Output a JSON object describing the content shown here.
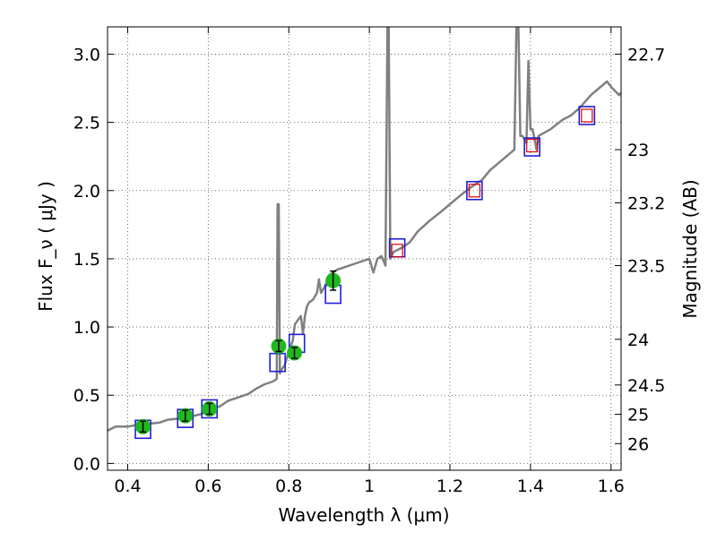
{
  "chart_data": {
    "type": "line",
    "title": "",
    "xlabel": "Wavelength  λ (μm)",
    "ylabel": "Flux  F_ν ( μJy )",
    "y2label": "Magnitude (AB)",
    "xlim": [
      0.35,
      1.625
    ],
    "ylim": [
      -0.05,
      3.2
    ],
    "grid": true,
    "legend": "none",
    "x_ticks": [
      0.4,
      0.6,
      0.8,
      1.0,
      1.2,
      1.4,
      1.6
    ],
    "x_tick_labels": [
      "0.4",
      "0.6",
      "0.8",
      "1",
      "1.2",
      "1.4",
      "1.6"
    ],
    "y_ticks": [
      0.0,
      0.5,
      1.0,
      1.5,
      2.0,
      2.5,
      3.0
    ],
    "y_tick_labels": [
      "0.0",
      "0.5",
      "1.0",
      "1.5",
      "2.0",
      "2.5",
      "3.0"
    ],
    "y2_ticks": [
      {
        "label": "22.7",
        "flux": 3.0
      },
      {
        "label": "23",
        "flux": 2.3
      },
      {
        "label": "23.2",
        "flux": 1.91
      },
      {
        "label": "23.5",
        "flux": 1.45
      },
      {
        "label": "24",
        "flux": 0.91
      },
      {
        "label": "24.5",
        "flux": 0.575
      },
      {
        "label": "25",
        "flux": 0.36
      },
      {
        "label": "26",
        "flux": 0.145
      }
    ],
    "model_spectrum": {
      "color": "#808080",
      "x": [
        0.35,
        0.37,
        0.4,
        0.42,
        0.45,
        0.48,
        0.5,
        0.53,
        0.55,
        0.58,
        0.6,
        0.63,
        0.65,
        0.68,
        0.7,
        0.72,
        0.74,
        0.76,
        0.77,
        0.772,
        0.775,
        0.778,
        0.78,
        0.79,
        0.8,
        0.81,
        0.815,
        0.82,
        0.83,
        0.835,
        0.84,
        0.845,
        0.85,
        0.86,
        0.87,
        0.875,
        0.88,
        0.89,
        0.9,
        0.92,
        0.94,
        0.96,
        0.98,
        1.0,
        1.01,
        1.02,
        1.03,
        1.04,
        1.045,
        1.048,
        1.052,
        1.055,
        1.06,
        1.08,
        1.1,
        1.12,
        1.15,
        1.18,
        1.2,
        1.22,
        1.25,
        1.28,
        1.3,
        1.32,
        1.34,
        1.36,
        1.365,
        1.37,
        1.375,
        1.38,
        1.39,
        1.395,
        1.4,
        1.405,
        1.41,
        1.415,
        1.42,
        1.45,
        1.48,
        1.5,
        1.52,
        1.55,
        1.57,
        1.59,
        1.6,
        1.62,
        1.625
      ],
      "y": [
        0.24,
        0.27,
        0.27,
        0.28,
        0.29,
        0.3,
        0.32,
        0.33,
        0.34,
        0.36,
        0.38,
        0.42,
        0.46,
        0.49,
        0.51,
        0.55,
        0.58,
        0.6,
        0.62,
        1.9,
        1.9,
        0.66,
        0.68,
        0.72,
        0.82,
        0.9,
        1.02,
        1.04,
        1.08,
        0.95,
        1.08,
        1.15,
        1.18,
        1.2,
        1.25,
        1.35,
        1.25,
        1.3,
        1.38,
        1.42,
        1.44,
        1.46,
        1.48,
        1.5,
        1.4,
        1.5,
        1.52,
        1.45,
        3.2,
        3.2,
        1.5,
        1.52,
        1.55,
        1.58,
        1.62,
        1.7,
        1.78,
        1.85,
        1.9,
        1.95,
        2.02,
        2.08,
        2.15,
        2.2,
        2.25,
        2.3,
        3.2,
        3.2,
        2.4,
        2.4,
        2.35,
        2.95,
        2.45,
        2.45,
        2.38,
        2.3,
        2.4,
        2.45,
        2.52,
        2.55,
        2.6,
        2.7,
        2.75,
        2.8,
        2.76,
        2.7,
        2.72
      ]
    },
    "model_bands": {
      "color": "#1f1fd6",
      "x": [
        0.438,
        0.543,
        0.603,
        0.772,
        0.82,
        0.91,
        1.069,
        1.261,
        1.404,
        1.54
      ],
      "y": [
        0.25,
        0.33,
        0.4,
        0.74,
        0.88,
        1.24,
        1.58,
        2.0,
        2.32,
        2.55
      ]
    },
    "observed_points": {
      "color": "#1fb81f",
      "x": [
        0.438,
        0.543,
        0.603,
        0.775,
        0.814,
        0.91
      ],
      "y": [
        0.27,
        0.35,
        0.4,
        0.86,
        0.81,
        1.34
      ],
      "yerr": [
        0.04,
        0.04,
        0.04,
        0.04,
        0.04,
        0.07
      ]
    },
    "upper_estimates": {
      "color": "#e00000",
      "x": [
        1.069,
        1.261,
        1.404,
        1.54
      ],
      "y": [
        1.56,
        2.0,
        2.33,
        2.55
      ]
    }
  }
}
